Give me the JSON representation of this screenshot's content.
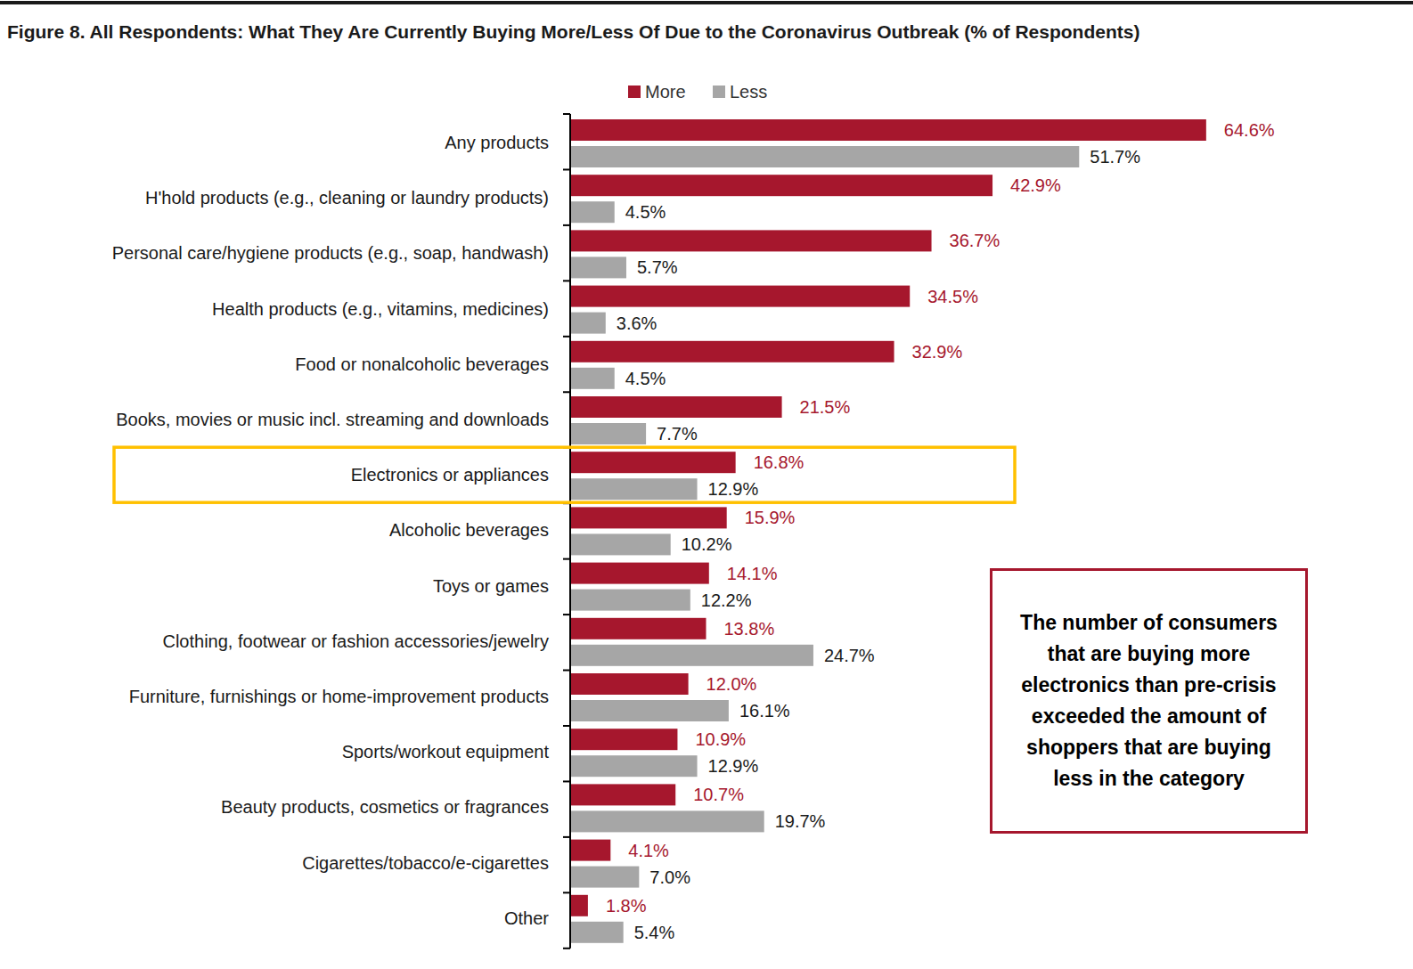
{
  "chart_data": {
    "type": "bar",
    "orientation": "horizontal",
    "title": "Figure 8. All Respondents: What They Are Currently Buying More/Less Of Due to the Coronavirus Outbreak (% of Respondents)",
    "categories": [
      "Any products",
      "H'hold products (e.g., cleaning or laundry products)",
      "Personal care/hygiene products (e.g., soap, handwash)",
      "Health products (e.g., vitamins, medicines)",
      "Food or nonalcoholic beverages",
      "Books, movies or music incl. streaming and downloads",
      "Electronics or appliances",
      "Alcoholic beverages",
      "Toys or games",
      "Clothing, footwear or fashion accessories/jewelry",
      "Furniture, furnishings or home-improvement products",
      "Sports/workout equipment",
      "Beauty products, cosmetics or fragrances",
      "Cigarettes/tobacco/e-cigarettes",
      "Other"
    ],
    "series": [
      {
        "name": "More",
        "color": "#A6172D",
        "values": [
          64.6,
          42.9,
          36.7,
          34.5,
          32.9,
          21.5,
          16.8,
          15.9,
          14.1,
          13.8,
          12.0,
          10.9,
          10.7,
          4.1,
          1.8
        ],
        "value_labels": [
          "64.6%",
          "42.9%",
          "36.7%",
          "34.5%",
          "32.9%",
          "21.5%",
          "16.8%",
          "15.9%",
          "14.1%",
          "13.8%",
          "12.0%",
          "10.9%",
          "10.7%",
          "4.1%",
          "1.8%"
        ]
      },
      {
        "name": "Less",
        "color": "#A6A6A6",
        "values": [
          51.7,
          4.5,
          5.7,
          3.6,
          4.5,
          7.7,
          12.9,
          10.2,
          12.2,
          24.7,
          16.1,
          12.9,
          19.7,
          7.0,
          5.4
        ],
        "value_labels": [
          "51.7%",
          "4.5%",
          "5.7%",
          "3.6%",
          "4.5%",
          "7.7%",
          "12.9%",
          "10.2%",
          "12.2%",
          "24.7%",
          "16.1%",
          "12.9%",
          "19.7%",
          "7.0%",
          "5.4%"
        ]
      }
    ],
    "xlim": [
      0,
      80
    ],
    "data_labels": true,
    "tick_labels": "y",
    "legend": "top",
    "annotations": [
      {
        "text": "The number of consumers that are buying more electronics than pre-crisis exceeded the amount of shoppers that are buying less in the category",
        "target": "Electronics or appliances"
      }
    ]
  }
}
